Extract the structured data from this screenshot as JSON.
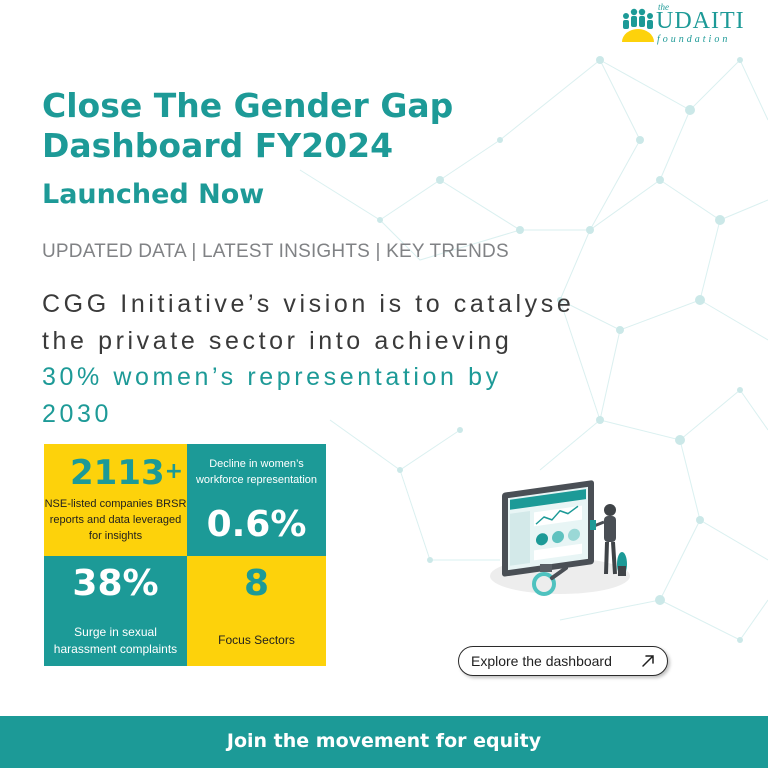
{
  "brand": {
    "logo_small": "the",
    "logo_name": "UDAITI",
    "logo_sub": "foundation",
    "teal": "#1c9a97",
    "yellow": "#fdd20b"
  },
  "headline": "Close The Gender Gap Dashboard FY2024",
  "subhead": "Launched Now",
  "tagline": "UPDATED DATA | LATEST INSIGHTS | KEY TRENDS",
  "vision": {
    "prefix": "CGG Initiative’s vision is to catalyse the private sector into achieving ",
    "highlight": "30% women’s representation by 2030"
  },
  "stats": {
    "companies": {
      "value": "2113",
      "suffix": "+",
      "label": "NSE-listed companies BRSR reports and data leveraged for insights"
    },
    "decline": {
      "label": "Decline in women’s workforce representation",
      "value": "0.6%"
    },
    "surge": {
      "value": "38%",
      "label": "Surge in sexual harassment complaints"
    },
    "sectors": {
      "value": "8",
      "label": "Focus Sectors"
    }
  },
  "explore_button": {
    "label": "Explore the dashboard",
    "icon": "arrow-up-right-icon"
  },
  "footer": {
    "cta": "Join the movement for equity"
  }
}
